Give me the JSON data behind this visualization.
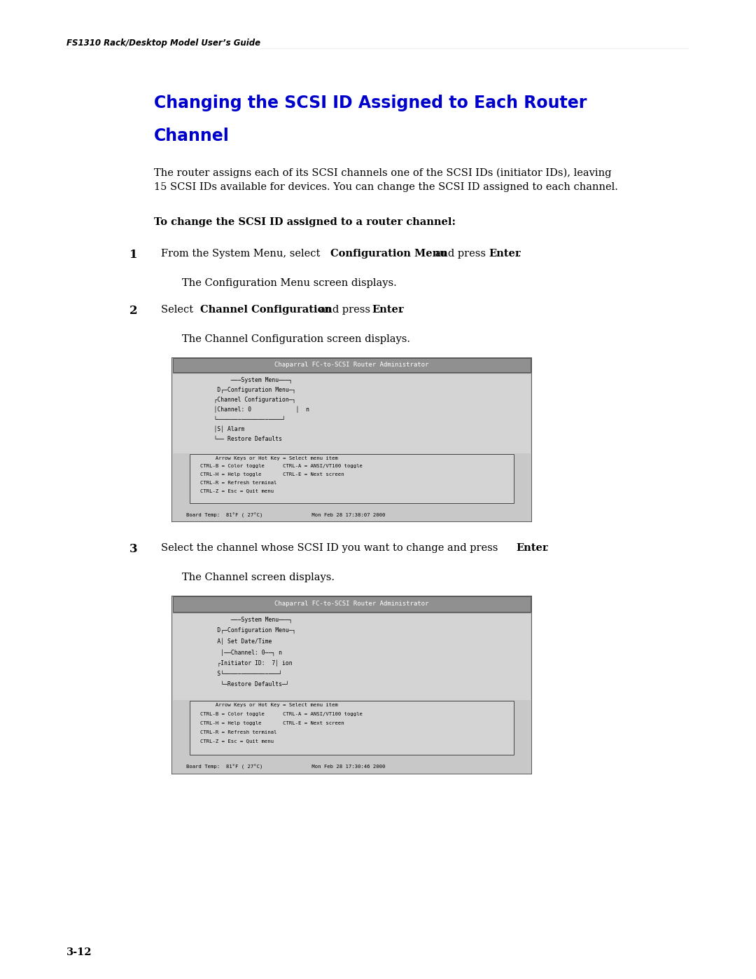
{
  "page_width": 10.8,
  "page_height": 13.97,
  "bg_color": "#ffffff",
  "header_text": "FS1310 Rack/Desktop Model User’s Guide",
  "title_line1": "Changing the SCSI ID Assigned to Each Router",
  "title_line2": "Channel",
  "title_color": "#0000cc",
  "body1": "The router assigns each of its SCSI channels one of the SCSI IDs (initiator IDs), leaving\n15 SCSI IDs available for devices. You can change the SCSI ID assigned to each channel.",
  "bold_instr": "To change the SCSI ID assigned to a router channel:",
  "step1_sub": "The Configuration Menu screen displays.",
  "step2_sub": "The Channel Configuration screen displays.",
  "step3_sub": "The Channel screen displays.",
  "footer_text": "3-12",
  "screen1_title": "Chaparral FC-to-SCSI Router Administrator",
  "screen1_status": "Board Temp:  81°F ( 27°C)                Mon Feb 28 17:38:07 2000",
  "screen2_title": "Chaparral FC-to-SCSI Router Administrator",
  "screen2_status": "Board Temp:  81°F ( 27°C)                Mon Feb 28 17:30:46 2000",
  "screen_bg": "#c8c8c8",
  "screen_title_bg": "#909090",
  "screen_inner_bg": "#d4d4d4",
  "screen_footer_bg": "#d0d0d0"
}
